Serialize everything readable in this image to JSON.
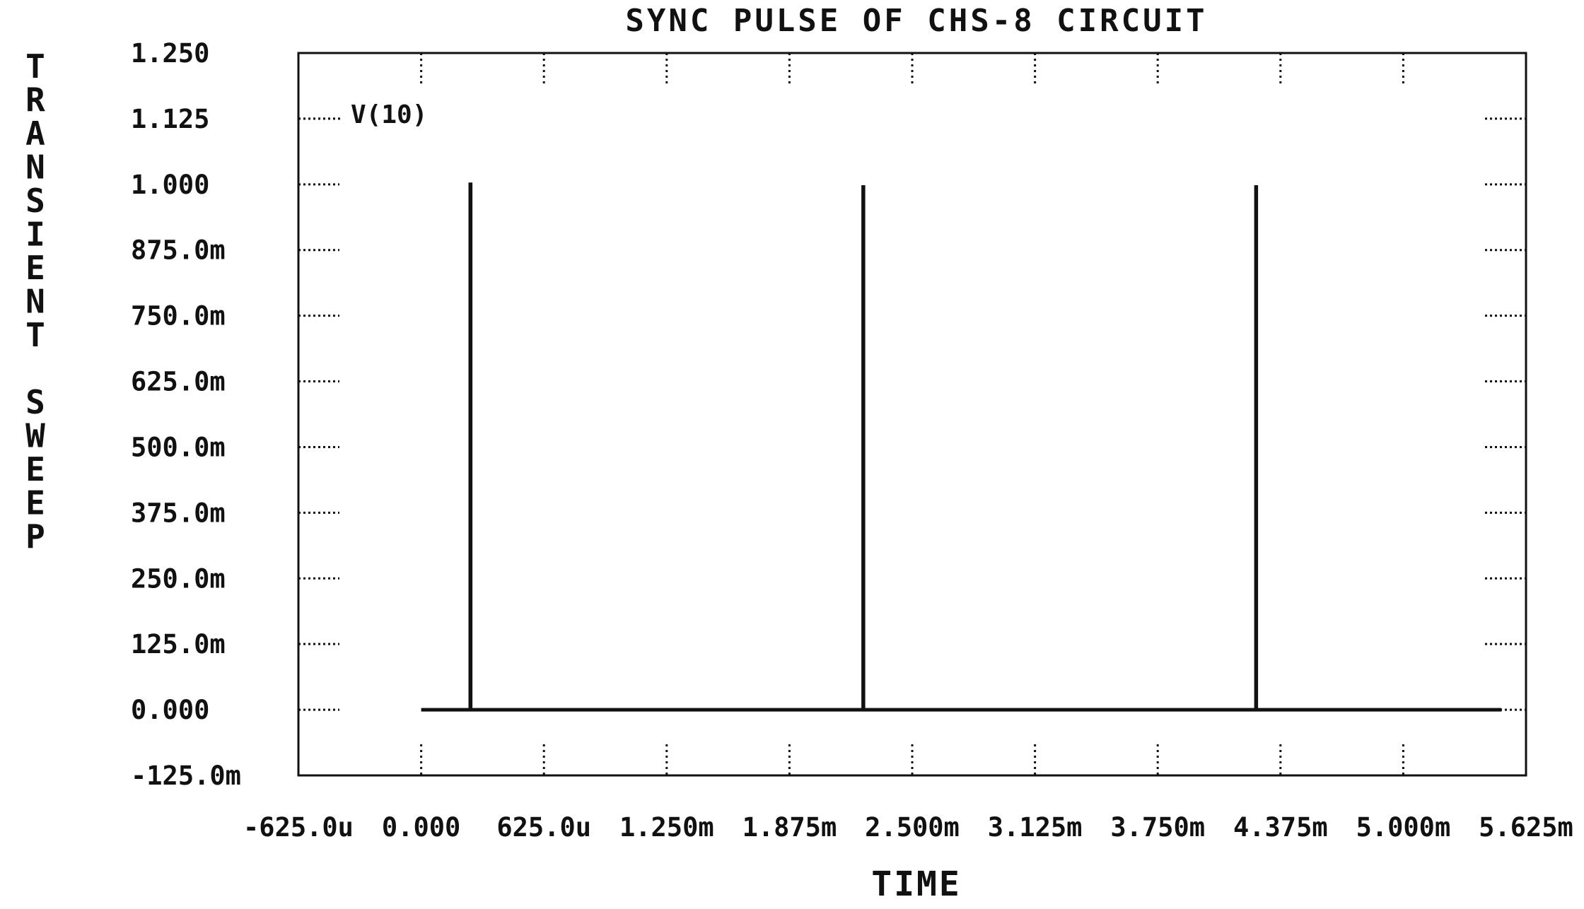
{
  "chart_data": {
    "type": "line",
    "title": "SYNC PULSE OF CHS-8 CIRCUIT",
    "xlabel": "TIME",
    "ylabel": "TRANSIENT SWEEP",
    "xlim": [
      -0.000625,
      0.005625
    ],
    "ylim": [
      -0.125,
      1.25
    ],
    "x_ticks": [
      -0.000625,
      0,
      0.000625,
      0.00125,
      0.001875,
      0.0025,
      0.003125,
      0.00375,
      0.004375,
      0.005,
      0.005625
    ],
    "x_tick_labels": [
      "-625.0u",
      "0.000",
      "625.0u",
      "1.250m",
      "1.875m",
      "2.500m",
      "3.125m",
      "3.750m",
      "4.375m",
      "5.000m",
      "5.625m"
    ],
    "y_ticks": [
      1.25,
      1.125,
      1.0,
      0.875,
      0.75,
      0.625,
      0.5,
      0.375,
      0.25,
      0.125,
      0.0,
      -0.125
    ],
    "y_tick_labels": [
      "1.250",
      "1.125",
      "1.000",
      "875.0m",
      "750.0m",
      "625.0m",
      "500.0m",
      "375.0m",
      "250.0m",
      "125.0m",
      "0.000",
      "-125.0m"
    ],
    "grid": false,
    "legend": "top-left",
    "series": [
      {
        "name": "V(10)",
        "color": "#111111",
        "x": [
          0,
          0.00025,
          0.00025,
          0.000252,
          0.000252,
          0.00225,
          0.00225,
          0.002252,
          0.002252,
          0.00425,
          0.00425,
          0.004252,
          0.004252,
          0.0055
        ],
        "y": [
          0,
          0,
          1.0,
          1.0,
          0,
          0,
          0.995,
          0.995,
          0,
          0,
          0.995,
          0.995,
          0,
          0
        ]
      }
    ]
  }
}
